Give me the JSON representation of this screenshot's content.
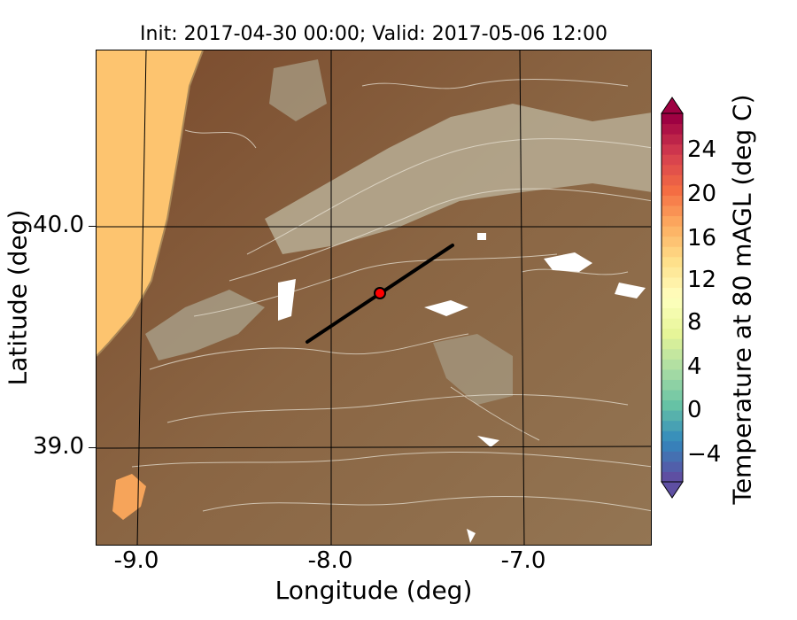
{
  "title": "Init: 2017-04-30 00:00; Valid: 2017-05-06 12:00",
  "xaxis": {
    "label": "Longitude (deg)",
    "ticks": [
      "-9.0",
      "-8.0",
      "-7.0"
    ]
  },
  "yaxis": {
    "label": "Latitude (deg)",
    "ticks": [
      "40.0",
      "39.0"
    ]
  },
  "colorbar": {
    "label": "Temperature at 80 mAGL (deg C)",
    "ticks": [
      "24",
      "20",
      "16",
      "12",
      "8",
      "4",
      "0",
      "−4"
    ],
    "range": [
      -8,
      28
    ],
    "colors": [
      "#5e4fa2",
      "#3288bd",
      "#66c2a5",
      "#abdda4",
      "#e6f598",
      "#ffffbf",
      "#fee08b",
      "#fdae61",
      "#f46d43",
      "#d53e4f",
      "#9e0142"
    ]
  },
  "map": {
    "ocean_color": "#fdc46f",
    "land_color": "#8c6a45",
    "highland_color": "#b7b09a",
    "transect": {
      "from_lon": -8.12,
      "from_lat": 39.5,
      "to_lon": -7.38,
      "to_lat": 39.91
    },
    "marker": {
      "lon": -7.75,
      "lat": 39.69,
      "color": "#ff0000"
    }
  }
}
